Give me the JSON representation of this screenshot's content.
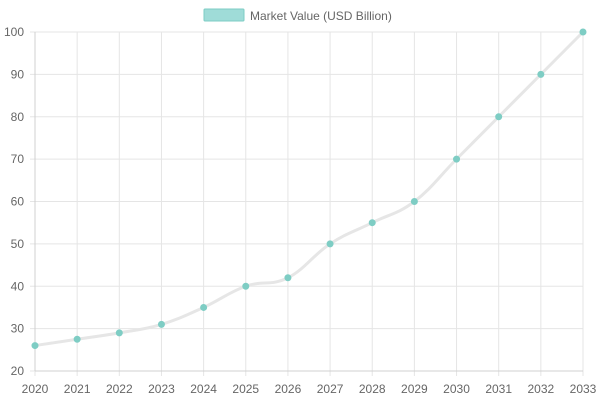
{
  "chart_data": {
    "type": "line",
    "x": [
      2020,
      2021,
      2022,
      2023,
      2024,
      2025,
      2026,
      2027,
      2028,
      2029,
      2030,
      2031,
      2032,
      2033
    ],
    "series": [
      {
        "name": "Market Value (USD Billion)",
        "values": [
          26,
          27.5,
          29,
          31,
          35,
          40,
          42,
          50,
          55,
          60,
          70,
          80,
          90,
          100
        ],
        "line_color": "#e6e6e6",
        "point_color": "#7ecdc4",
        "legend_fill": "#9fdcd8",
        "legend_border": "#7ecdc4"
      }
    ],
    "ylim": [
      20,
      100
    ],
    "yticks": [
      20,
      30,
      40,
      50,
      60,
      70,
      80,
      90,
      100
    ],
    "xticks": [
      "2020",
      "2021",
      "2022",
      "2023",
      "2024",
      "2025",
      "2026",
      "2027",
      "2028",
      "2029",
      "2030",
      "2031",
      "2032",
      "2033"
    ],
    "grid": true,
    "legend_position": "top-center",
    "title": "",
    "xlabel": "",
    "ylabel": ""
  }
}
